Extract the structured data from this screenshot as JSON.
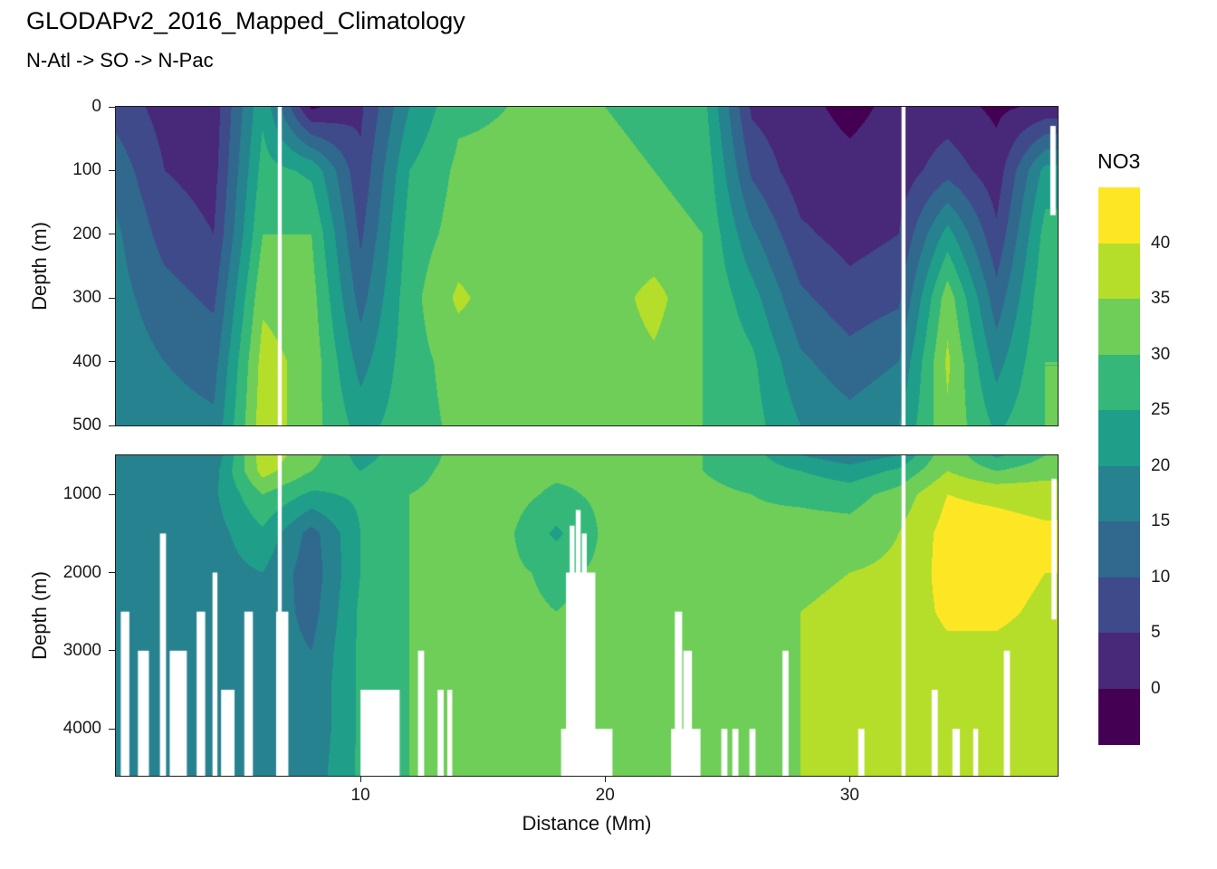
{
  "title": "GLODAPv2_2016_Mapped_Climatology",
  "subtitle": "N-Atl -> SO -> N-Pac",
  "x_axis": {
    "label": "Distance (Mm)",
    "ticks": [
      10,
      20,
      30
    ],
    "range": [
      0,
      38.5
    ]
  },
  "panels": [
    {
      "name": "upper",
      "ylabel": "Depth (m)",
      "y_ticks": [
        0,
        100,
        200,
        300,
        400,
        500
      ],
      "depth_range": [
        0,
        500
      ]
    },
    {
      "name": "lower",
      "ylabel": "Depth (m)",
      "y_ticks": [
        1000,
        2000,
        3000,
        4000
      ],
      "depth_range": [
        500,
        4600
      ]
    }
  ],
  "legend": {
    "title": "NO3",
    "ticks": [
      40,
      35,
      30,
      25,
      20,
      15,
      10,
      5,
      0
    ],
    "value_range": [
      -5,
      45
    ]
  },
  "chart_data": {
    "type": "heatmap",
    "title": "GLODAPv2_2016_Mapped_Climatology",
    "subtitle": "N-Atl -> SO -> N-Pac",
    "variable": "NO3",
    "xlabel": "Distance (Mm)",
    "ylabel": "Depth (m)",
    "x_range": [
      0,
      38.5
    ],
    "x_Mm": [
      0,
      2,
      4,
      6,
      8,
      10,
      12,
      14,
      16,
      18,
      20,
      22,
      24,
      26,
      28,
      30,
      32,
      34,
      36,
      38
    ],
    "depth_m": [
      0,
      100,
      200,
      300,
      400,
      500,
      700,
      1000,
      1500,
      2000,
      2500,
      3000,
      3500,
      4000,
      4500
    ],
    "values": [
      [
        8,
        3,
        2,
        24,
        -1,
        4,
        20,
        29,
        30,
        30,
        30,
        29,
        27,
        4,
        1,
        -1,
        1,
        2,
        -1,
        1
      ],
      [
        13,
        5,
        3,
        27,
        24,
        6,
        25,
        31,
        31,
        31,
        31,
        30,
        29,
        9,
        2,
        1,
        2,
        8,
        2,
        22
      ],
      [
        16,
        8,
        5,
        30,
        30,
        9,
        27,
        32,
        32,
        31,
        32,
        31,
        30,
        16,
        6,
        3,
        5,
        22,
        6,
        27
      ],
      [
        17,
        12,
        9,
        34,
        32,
        13,
        28,
        36,
        32,
        31,
        32,
        37,
        30,
        22,
        11,
        7,
        9,
        33,
        12,
        29
      ],
      [
        18,
        15,
        13,
        37,
        33,
        18,
        28,
        32,
        32,
        31,
        32,
        34,
        30,
        26,
        16,
        12,
        15,
        36,
        18,
        30
      ],
      [
        18,
        17,
        16,
        38,
        32,
        23,
        28,
        31,
        32,
        31,
        31,
        31,
        30,
        27,
        20,
        17,
        20,
        34,
        24,
        30
      ],
      [
        18,
        18,
        18,
        37,
        30,
        25,
        29,
        31,
        32,
        31,
        31,
        31,
        30,
        28,
        25,
        22,
        26,
        35,
        30,
        33
      ],
      [
        18,
        18,
        19,
        30,
        24,
        26,
        30,
        31,
        32,
        29,
        31,
        31,
        31,
        30,
        29,
        28,
        32,
        40,
        39,
        38
      ],
      [
        17,
        17,
        18,
        24,
        13,
        25,
        30,
        31,
        31,
        24,
        31,
        31,
        31,
        31,
        32,
        32,
        35,
        42,
        42,
        41
      ],
      [
        17,
        17,
        18,
        20,
        12,
        25,
        30,
        31,
        31,
        29,
        31,
        31,
        31,
        32,
        34,
        35,
        36,
        42,
        42,
        40
      ],
      [
        17,
        17,
        17,
        19,
        13,
        26,
        30,
        31,
        31,
        30,
        31,
        31,
        31,
        32,
        35,
        36,
        37,
        41,
        41,
        39
      ],
      [
        17,
        17,
        17,
        18,
        15,
        26,
        30,
        31,
        31,
        30,
        31,
        31,
        32,
        33,
        35,
        36,
        37,
        39,
        39,
        38
      ],
      [
        17,
        17,
        17,
        18,
        16,
        26,
        30,
        31,
        31,
        30,
        31,
        31,
        32,
        33,
        35,
        36,
        36,
        37,
        38,
        37
      ],
      [
        17,
        17,
        17,
        18,
        16,
        26,
        30,
        31,
        31,
        30,
        31,
        31,
        32,
        33,
        35,
        36,
        36,
        36,
        37,
        37
      ],
      [
        17,
        17,
        17,
        18,
        17,
        26,
        30,
        31,
        31,
        30,
        31,
        31,
        32,
        33,
        35,
        36,
        36,
        36,
        37,
        37
      ]
    ],
    "levels": [
      0,
      5,
      10,
      15,
      20,
      25,
      30,
      35,
      40
    ],
    "colors": [
      "#440154",
      "#482878",
      "#3e4a89",
      "#31688e",
      "#26828e",
      "#1f9e89",
      "#35b779",
      "#6ece58",
      "#b5de2b",
      "#fde725"
    ],
    "separators": [
      {
        "x": 6.7,
        "width_Mm": 0.16
      },
      {
        "x": 32.2,
        "width_Mm": 0.16
      }
    ],
    "upper_mask": [
      {
        "x0": 38.2,
        "x1": 38.42,
        "top": 30,
        "bottom": 170
      }
    ],
    "bathymetry_mask": [
      {
        "x0": 0.2,
        "x1": 0.55,
        "top": 2500
      },
      {
        "x0": 0.9,
        "x1": 1.35,
        "top": 3000
      },
      {
        "x0": 1.8,
        "x1": 2.05,
        "top": 1500
      },
      {
        "x0": 2.2,
        "x1": 2.9,
        "top": 3000
      },
      {
        "x0": 3.3,
        "x1": 3.65,
        "top": 2500
      },
      {
        "x0": 3.95,
        "x1": 4.15,
        "top": 2000
      },
      {
        "x0": 4.3,
        "x1": 4.85,
        "top": 3500
      },
      {
        "x0": 5.25,
        "x1": 5.6,
        "top": 2500
      },
      {
        "x0": 6.55,
        "x1": 7.05,
        "top": 2500
      },
      {
        "x0": 10.0,
        "x1": 11.6,
        "top": 3500
      },
      {
        "x0": 12.35,
        "x1": 12.6,
        "top": 3000
      },
      {
        "x0": 13.15,
        "x1": 13.4,
        "top": 3500
      },
      {
        "x0": 13.55,
        "x1": 13.75,
        "top": 3500
      },
      {
        "x0": 18.4,
        "x1": 19.6,
        "top": 2000
      },
      {
        "x0": 18.55,
        "x1": 18.75,
        "top": 1400
      },
      {
        "x0": 18.8,
        "x1": 19.0,
        "top": 1200
      },
      {
        "x0": 19.05,
        "x1": 19.25,
        "top": 1500
      },
      {
        "x0": 18.2,
        "x1": 20.3,
        "top": 4000
      },
      {
        "x0": 22.85,
        "x1": 23.15,
        "top": 2500
      },
      {
        "x0": 23.2,
        "x1": 23.55,
        "top": 3000
      },
      {
        "x0": 22.7,
        "x1": 23.9,
        "top": 4000
      },
      {
        "x0": 24.75,
        "x1": 25.0,
        "top": 4000
      },
      {
        "x0": 25.2,
        "x1": 25.45,
        "top": 4000
      },
      {
        "x0": 25.9,
        "x1": 26.15,
        "top": 4000
      },
      {
        "x0": 27.25,
        "x1": 27.5,
        "top": 3000
      },
      {
        "x0": 30.35,
        "x1": 30.6,
        "top": 4000
      },
      {
        "x0": 33.35,
        "x1": 33.6,
        "top": 3500
      },
      {
        "x0": 34.2,
        "x1": 34.5,
        "top": 4000
      },
      {
        "x0": 35.05,
        "x1": 35.25,
        "top": 4000
      },
      {
        "x0": 36.3,
        "x1": 36.55,
        "top": 3000
      },
      {
        "x0": 38.25,
        "x1": 38.45,
        "top": 800,
        "bottom": 2600
      }
    ]
  }
}
